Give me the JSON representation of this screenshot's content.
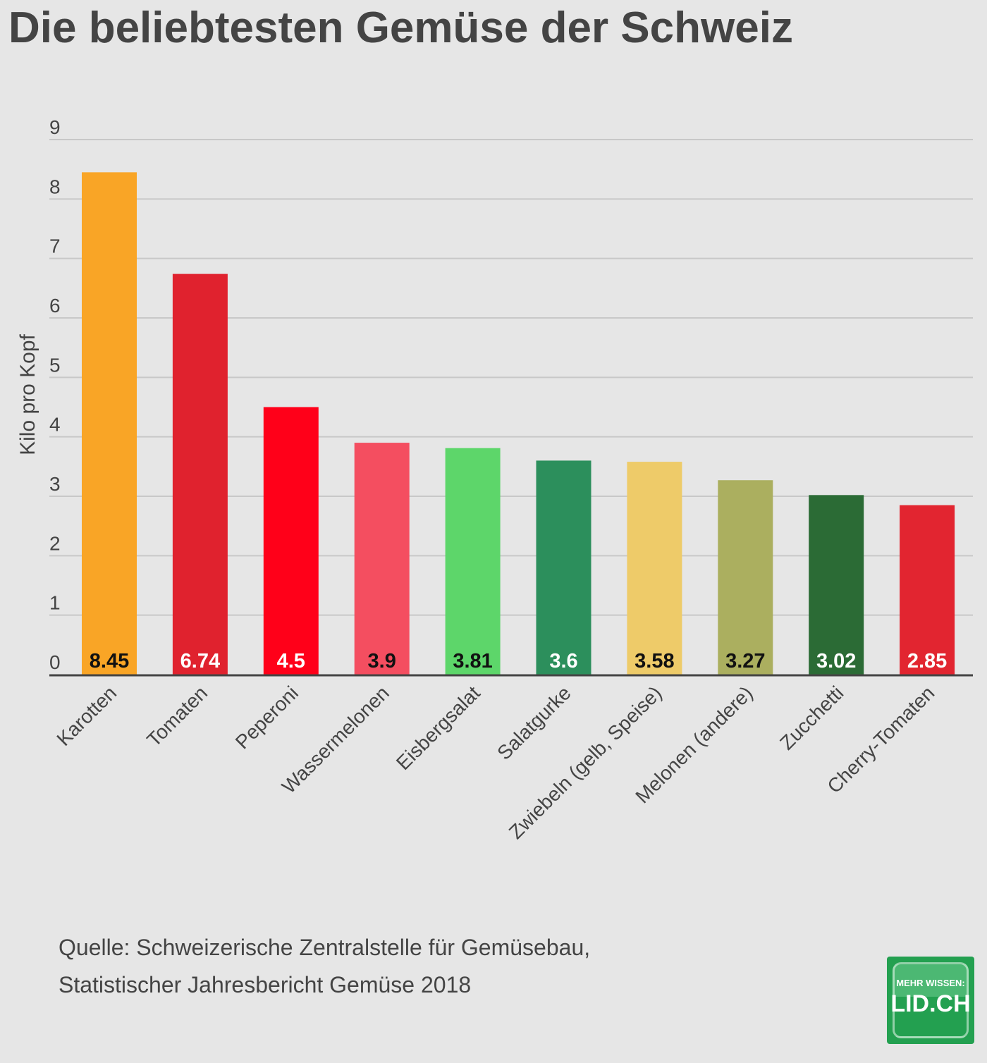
{
  "title": "Die beliebtesten Gemüse der Schweiz",
  "source": "Quelle: Schweizerische Zentralstelle für Gemüsebau, Statistischer Jahresbericht Gemüse 2018",
  "logo": {
    "line1": "MEHR WISSEN:",
    "line2": "LID.CH"
  },
  "chart_data": {
    "type": "bar",
    "title": "Die beliebtesten Gemüse der Schweiz",
    "xlabel": "",
    "ylabel": "Kilo pro Kopf",
    "ylim": [
      0,
      9
    ],
    "yticks": [
      0,
      1,
      2,
      3,
      4,
      5,
      6,
      7,
      8,
      9
    ],
    "grid": true,
    "categories": [
      "Karotten",
      "Tomaten",
      "Peperoni",
      "Wassermelonen",
      "Eisbergsalat",
      "Salatgurke",
      "Zwiebeln (gelb, Speise)",
      "Melonen (andere)",
      "Zucchetti",
      "Cherry-Tomaten"
    ],
    "values": [
      8.45,
      6.74,
      4.5,
      3.9,
      3.81,
      3.6,
      3.58,
      3.27,
      3.02,
      2.85
    ],
    "colors": [
      "#f9a526",
      "#e0222e",
      "#ff0019",
      "#f44e60",
      "#5dd66a",
      "#2c8f5c",
      "#eecb69",
      "#abaf5f",
      "#2b6b35",
      "#e22530"
    ],
    "label_colors": [
      "#111111",
      "#ffffff",
      "#ffffff",
      "#111111",
      "#111111",
      "#ffffff",
      "#111111",
      "#111111",
      "#ffffff",
      "#ffffff"
    ]
  }
}
